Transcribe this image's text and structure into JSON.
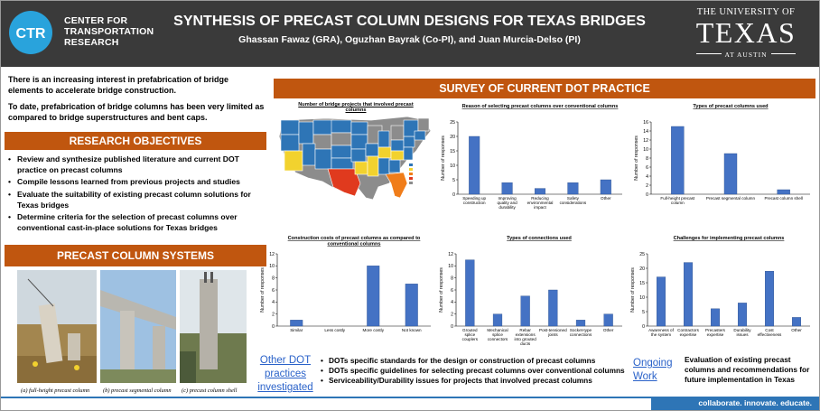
{
  "header": {
    "ctr_logo": "CTR",
    "ctr_line1": "CENTER FOR",
    "ctr_line2": "TRANSPORTATION",
    "ctr_line3": "RESEARCH",
    "title": "SYNTHESIS OF PRECAST COLUMN DESIGNS FOR TEXAS BRIDGES",
    "authors": "Ghassan Fawaz (GRA), Oguzhan Bayrak (Co-PI), and Juan Murcia-Delso (PI)",
    "ut_top": "THE UNIVERSITY OF",
    "ut_texas": "TEXAS",
    "ut_austin": "AT AUSTIN"
  },
  "intro": {
    "p1": "There is an increasing interest in prefabrication of bridge elements to accelerate bridge construction.",
    "p2": "To date, prefabrication of bridge columns has been very limited as compared to bridge superstructures and bent caps."
  },
  "objectives": {
    "heading": "RESEARCH OBJECTIVES",
    "items": [
      "Review and synthesize published literature and current DOT practice on precast columns",
      "Compile lessons learned from previous projects and studies",
      "Evaluate the suitability of existing precast column solutions for Texas bridges",
      "Determine criteria for the selection of precast columns over conventional cast-in-place solutions for Texas bridges"
    ]
  },
  "systems": {
    "heading": "PRECAST COLUMN SYSTEMS",
    "captions": [
      "(a) full-height precast column",
      "(b) precast segmental column",
      "(c) precast column shell"
    ]
  },
  "survey": {
    "heading": "SURVEY OF CURRENT DOT PRACTICE",
    "map_title": "Number of bridge projects that involved precast columns"
  },
  "colors": {
    "orange": "#c0560f",
    "bar": "#4472c4",
    "header": "#3a3a3a",
    "link": "#2a62c9"
  },
  "chart_data": [
    {
      "type": "bar",
      "title": "Reason of selecting precast columns over conventional columns",
      "ylabel": "Number of responses",
      "categories": [
        "Speeding up construction",
        "Improving quality and durability",
        "Reducing environmental impact",
        "Safety considerations",
        "Other"
      ],
      "values": [
        20,
        4,
        2,
        4,
        5
      ],
      "ylim": [
        0,
        25
      ],
      "yticks": [
        0,
        5,
        10,
        15,
        20,
        25
      ]
    },
    {
      "type": "bar",
      "title": "Types of precast columns used",
      "ylabel": "Number of responses",
      "categories": [
        "Full-height precast column",
        "Precast segmental column",
        "Precast column shell"
      ],
      "values": [
        15,
        9,
        1
      ],
      "ylim": [
        0,
        16
      ],
      "yticks": [
        0,
        2,
        4,
        6,
        8,
        10,
        12,
        14,
        16
      ]
    },
    {
      "type": "bar",
      "title": "Construction costs of precast columns as compared to conventional columns",
      "ylabel": "Number of responses",
      "categories": [
        "Similar",
        "Less costly",
        "More costly",
        "Not known"
      ],
      "values": [
        1,
        0,
        10,
        7
      ],
      "ylim": [
        0,
        12
      ],
      "yticks": [
        0,
        2,
        4,
        6,
        8,
        10,
        12
      ]
    },
    {
      "type": "bar",
      "title": "Types of connections used",
      "ylabel": "Number of responses",
      "categories": [
        "Grouted splice couplers",
        "Mechanical splice connectors",
        "Rebar extensions into grouted ducts",
        "Post-tensioned joints",
        "Socket-type connections",
        "Other"
      ],
      "values": [
        11,
        2,
        5,
        6,
        1,
        2
      ],
      "ylim": [
        0,
        12
      ],
      "yticks": [
        0,
        2,
        4,
        6,
        8,
        10,
        12
      ]
    },
    {
      "type": "bar",
      "title": "Challenges for implementing precast columns",
      "ylabel": "Number of responses",
      "categories": [
        "Awareness of the system",
        "Contractors expertise",
        "Precasters expertise",
        "Durability issues",
        "Cost effectiveness",
        "Other"
      ],
      "values": [
        17,
        22,
        6,
        8,
        19,
        3
      ],
      "ylim": [
        0,
        25
      ],
      "yticks": [
        0,
        5,
        10,
        15,
        20,
        25
      ]
    }
  ],
  "other_dot": {
    "link": "Other DOT practices investigated",
    "items": [
      "DOTs specific standards for the design or construction of precast columns",
      "DOTs specific guidelines for selecting precast columns over conventional columns",
      "Serviceability/Durability issues for projects that involved precast columns"
    ]
  },
  "ongoing": {
    "link": "Ongoing Work",
    "text": "Evaluation of existing precast columns and recommendations for future implementation in Texas"
  },
  "footer": "collaborate. innovate. educate."
}
